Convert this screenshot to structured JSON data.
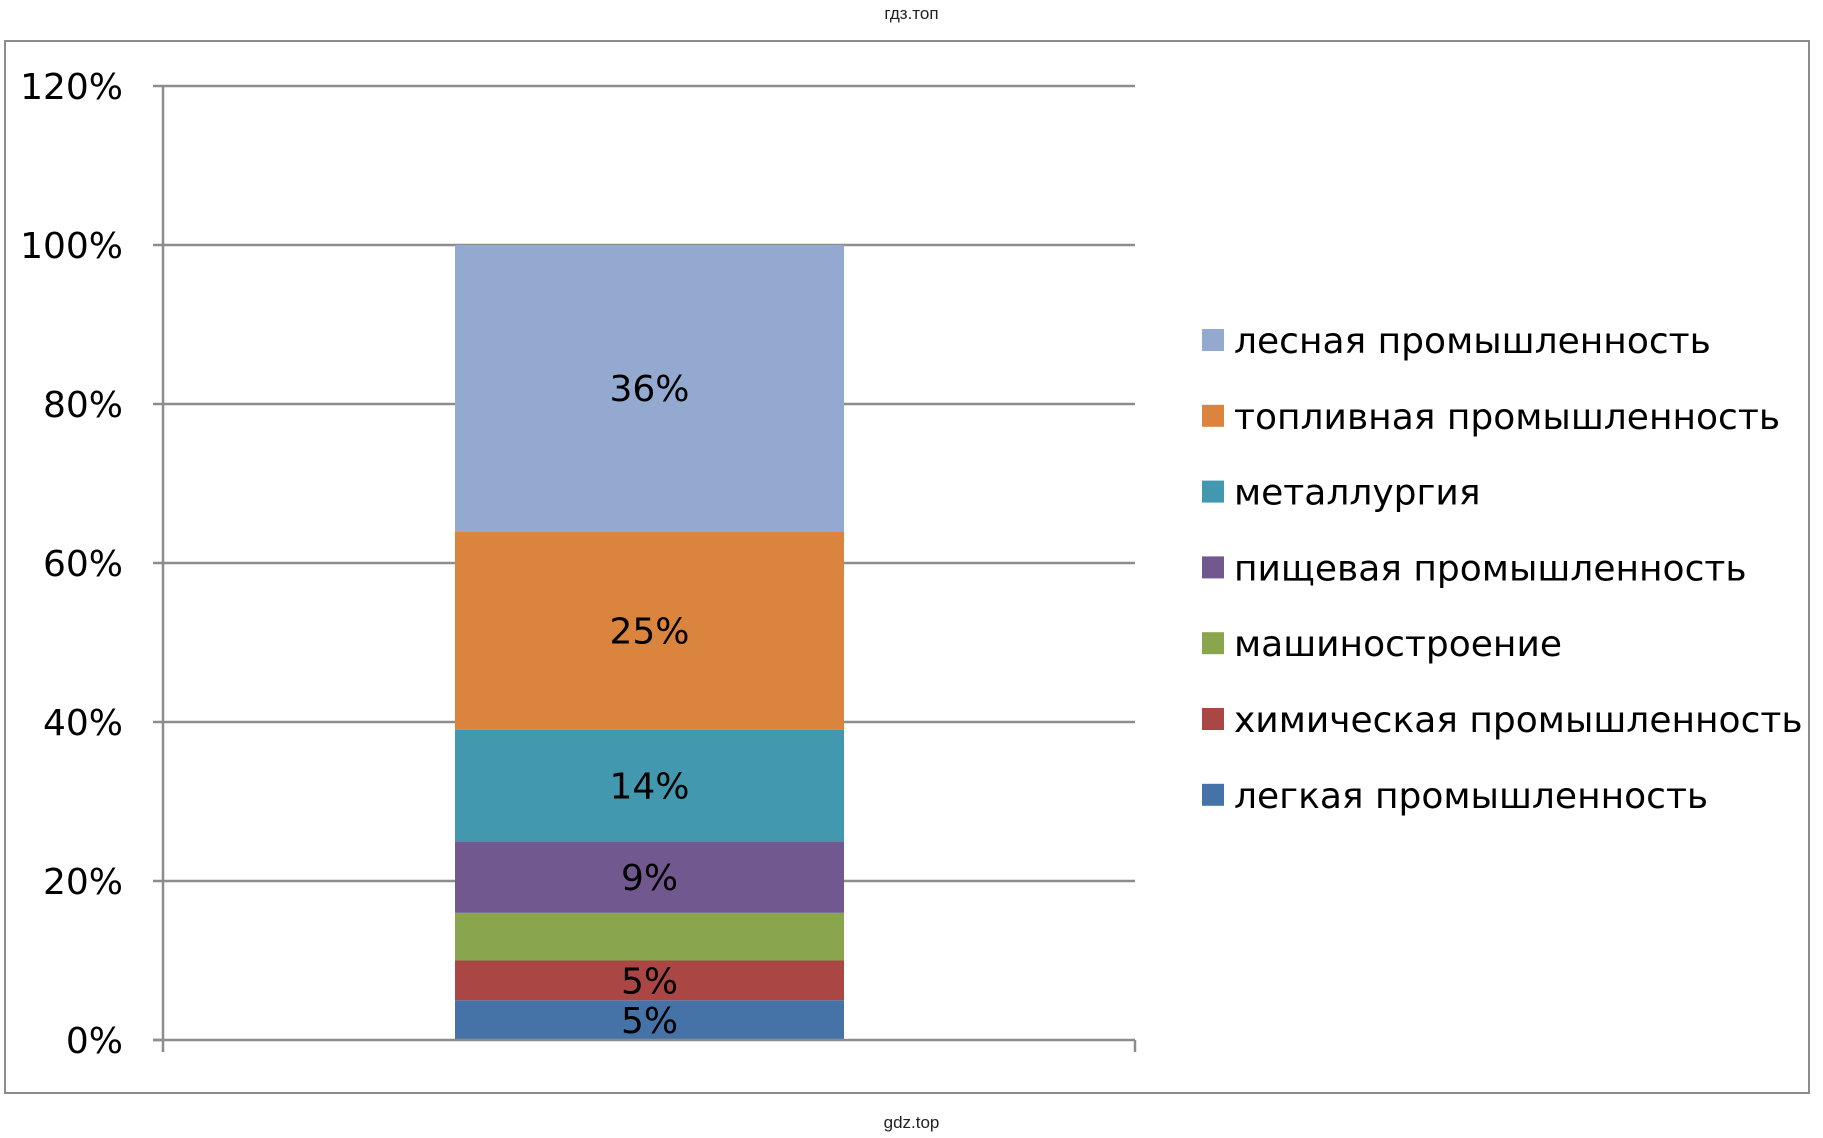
{
  "watermark_top": "гдз.топ",
  "watermark_bottom": "gdz.top",
  "chart_data": {
    "type": "bar",
    "stacked": true,
    "categories": [
      ""
    ],
    "ylim": [
      0,
      120
    ],
    "yticks": [
      "0%",
      "20%",
      "40%",
      "60%",
      "80%",
      "100%",
      "120%"
    ],
    "grid": true,
    "legend_position": "right",
    "series": [
      {
        "name": "легкая промышленность",
        "values": [
          5
        ],
        "label": "5%",
        "color": "#4573a7"
      },
      {
        "name": "химическая промышленность",
        "values": [
          5
        ],
        "label": "5%",
        "color": "#aa4744"
      },
      {
        "name": "машиностроение",
        "values": [
          6
        ],
        "label": "",
        "color": "#89a54e"
      },
      {
        "name": "пищевая промышленность",
        "values": [
          9
        ],
        "label": "9%",
        "color": "#71588f"
      },
      {
        "name": "металлургия",
        "values": [
          14
        ],
        "label": "14%",
        "color": "#4198af"
      },
      {
        "name": "топливная промышленность",
        "values": [
          25
        ],
        "label": "25%",
        "color": "#db843d"
      },
      {
        "name": "лесная промышленность",
        "values": [
          36
        ],
        "label": "36%",
        "color": "#93a9cf"
      }
    ]
  }
}
